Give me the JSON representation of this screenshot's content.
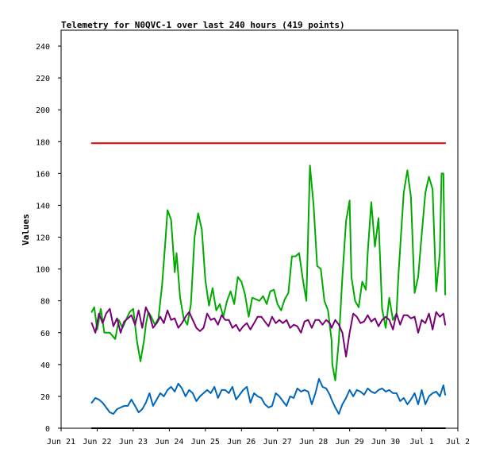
{
  "chart_data": {
    "type": "line",
    "title": "Telemetry for N0QVC-1 over last 240 hours (419 points)",
    "xlabel": "",
    "ylabel": "Values",
    "ylim": [
      0,
      250
    ],
    "yticks": [
      0,
      20,
      40,
      60,
      80,
      100,
      120,
      140,
      160,
      180,
      200,
      220,
      240
    ],
    "xlim": [
      0,
      11
    ],
    "xticks": [
      {
        "x": 0,
        "label": "Jun 21"
      },
      {
        "x": 1,
        "label": "Jun 22"
      },
      {
        "x": 2,
        "label": "Jun 23"
      },
      {
        "x": 3,
        "label": "Jun 24"
      },
      {
        "x": 4,
        "label": "Jun 25"
      },
      {
        "x": 5,
        "label": "Jun 26"
      },
      {
        "x": 6,
        "label": "Jun 27"
      },
      {
        "x": 7,
        "label": "Jun 28"
      },
      {
        "x": 8,
        "label": "Jun 29"
      },
      {
        "x": 9,
        "label": "Jun 30"
      },
      {
        "x": 10,
        "label": "Jul 1"
      },
      {
        "x": 11,
        "label": "Jul 2"
      }
    ],
    "grid": false,
    "legend": "none",
    "series": [
      {
        "color": "#dd0000",
        "x": [
          0.85,
          10.65
        ],
        "y": [
          179,
          179
        ]
      },
      {
        "color": "#000000",
        "x": [
          0.85,
          10.65
        ],
        "y": [
          0,
          0
        ]
      },
      {
        "color": "#00aa00",
        "x": [
          0.85,
          0.92,
          1.0,
          1.1,
          1.2,
          1.35,
          1.5,
          1.6,
          1.7,
          1.8,
          1.9,
          2.0,
          2.1,
          2.2,
          2.3,
          2.35,
          2.42,
          2.5,
          2.6,
          2.7,
          2.8,
          2.9,
          2.95,
          3.05,
          3.15,
          3.2,
          3.3,
          3.4,
          3.5,
          3.6,
          3.7,
          3.8,
          3.9,
          4.0,
          4.1,
          4.2,
          4.3,
          4.4,
          4.5,
          4.6,
          4.7,
          4.8,
          4.9,
          5.0,
          5.1,
          5.2,
          5.3,
          5.4,
          5.5,
          5.6,
          5.7,
          5.8,
          5.9,
          6.0,
          6.1,
          6.2,
          6.3,
          6.4,
          6.5,
          6.6,
          6.7,
          6.8,
          6.9,
          7.0,
          7.1,
          7.2,
          7.3,
          7.4,
          7.5,
          7.52,
          7.6,
          7.7,
          7.8,
          7.9,
          8.0,
          8.05,
          8.15,
          8.25,
          8.35,
          8.45,
          8.5,
          8.6,
          8.7,
          8.8,
          8.9,
          9.0,
          9.1,
          9.2,
          9.3,
          9.35,
          9.45,
          9.5,
          9.6,
          9.7,
          9.8,
          9.9,
          10.0,
          10.1,
          10.2,
          10.3,
          10.4,
          10.5,
          10.55,
          10.6,
          10.65
        ],
        "y": [
          73,
          76,
          62,
          75,
          60,
          60,
          56,
          68,
          63,
          68,
          73,
          75,
          55,
          42,
          55,
          65,
          73,
          70,
          65,
          69,
          90,
          120,
          137,
          131,
          98,
          110,
          82,
          69,
          65,
          78,
          120,
          135,
          125,
          93,
          77,
          88,
          74,
          78,
          70,
          80,
          86,
          78,
          95,
          92,
          84,
          70,
          82,
          81,
          80,
          83,
          78,
          86,
          87,
          78,
          74,
          81,
          85,
          108,
          108,
          110,
          94,
          80,
          165,
          140,
          102,
          100,
          80,
          74,
          55,
          40,
          30,
          55,
          95,
          130,
          143,
          95,
          80,
          76,
          92,
          87,
          110,
          142,
          114,
          132,
          75,
          63,
          82,
          68,
          72,
          95,
          130,
          148,
          162,
          145,
          85,
          95,
          122,
          148,
          158,
          150,
          86,
          110,
          160,
          160,
          84
        ]
      },
      {
        "color": "#770077",
        "x": [
          0.85,
          0.95,
          1.05,
          1.15,
          1.25,
          1.35,
          1.45,
          1.55,
          1.65,
          1.75,
          1.85,
          1.95,
          2.05,
          2.15,
          2.25,
          2.35,
          2.45,
          2.55,
          2.65,
          2.75,
          2.85,
          2.95,
          3.05,
          3.15,
          3.25,
          3.35,
          3.45,
          3.55,
          3.65,
          3.75,
          3.85,
          3.95,
          4.05,
          4.15,
          4.25,
          4.35,
          4.45,
          4.55,
          4.65,
          4.75,
          4.85,
          4.95,
          5.05,
          5.15,
          5.25,
          5.35,
          5.45,
          5.55,
          5.65,
          5.75,
          5.85,
          5.95,
          6.05,
          6.15,
          6.25,
          6.35,
          6.45,
          6.55,
          6.65,
          6.75,
          6.85,
          6.95,
          7.05,
          7.15,
          7.25,
          7.35,
          7.45,
          7.5,
          7.6,
          7.7,
          7.8,
          7.9,
          8.0,
          8.1,
          8.2,
          8.3,
          8.4,
          8.5,
          8.6,
          8.7,
          8.8,
          8.9,
          9.0,
          9.1,
          9.2,
          9.3,
          9.4,
          9.5,
          9.6,
          9.7,
          9.8,
          9.9,
          10.0,
          10.1,
          10.2,
          10.3,
          10.4,
          10.5,
          10.6,
          10.65
        ],
        "y": [
          66,
          60,
          72,
          66,
          72,
          75,
          64,
          69,
          60,
          67,
          69,
          71,
          65,
          74,
          63,
          76,
          71,
          63,
          66,
          70,
          66,
          74,
          68,
          69,
          63,
          66,
          70,
          73,
          68,
          63,
          61,
          63,
          72,
          68,
          69,
          65,
          71,
          68,
          68,
          63,
          65,
          61,
          64,
          66,
          62,
          66,
          70,
          70,
          67,
          64,
          70,
          66,
          68,
          66,
          68,
          63,
          65,
          64,
          60,
          67,
          68,
          63,
          68,
          68,
          65,
          68,
          66,
          63,
          68,
          65,
          60,
          45,
          60,
          72,
          70,
          66,
          67,
          71,
          67,
          69,
          64,
          68,
          70,
          68,
          62,
          72,
          65,
          71,
          71,
          69,
          70,
          60,
          68,
          66,
          72,
          62,
          73,
          70,
          72,
          65
        ]
      },
      {
        "color": "#0066bb",
        "x": [
          0.85,
          0.95,
          1.05,
          1.15,
          1.25,
          1.35,
          1.45,
          1.55,
          1.65,
          1.75,
          1.85,
          1.95,
          2.05,
          2.15,
          2.25,
          2.35,
          2.45,
          2.55,
          2.65,
          2.75,
          2.85,
          2.95,
          3.05,
          3.15,
          3.25,
          3.35,
          3.45,
          3.55,
          3.65,
          3.75,
          3.85,
          3.95,
          4.05,
          4.15,
          4.25,
          4.35,
          4.45,
          4.55,
          4.65,
          4.75,
          4.85,
          4.95,
          5.05,
          5.15,
          5.25,
          5.35,
          5.45,
          5.55,
          5.65,
          5.75,
          5.85,
          5.95,
          6.05,
          6.15,
          6.25,
          6.35,
          6.45,
          6.55,
          6.65,
          6.75,
          6.85,
          6.95,
          7.05,
          7.15,
          7.25,
          7.35,
          7.45,
          7.5,
          7.6,
          7.7,
          7.8,
          7.9,
          8.0,
          8.1,
          8.2,
          8.3,
          8.4,
          8.5,
          8.6,
          8.7,
          8.8,
          8.9,
          9.0,
          9.1,
          9.2,
          9.3,
          9.4,
          9.5,
          9.6,
          9.7,
          9.8,
          9.9,
          10.0,
          10.1,
          10.2,
          10.3,
          10.4,
          10.5,
          10.6,
          10.65
        ],
        "y": [
          16,
          19,
          18,
          16,
          13,
          10,
          9,
          12,
          13,
          14,
          14,
          18,
          14,
          10,
          12,
          16,
          22,
          14,
          18,
          22,
          20,
          24,
          26,
          23,
          28,
          25,
          20,
          24,
          22,
          17,
          20,
          22,
          24,
          22,
          26,
          19,
          24,
          24,
          22,
          26,
          18,
          21,
          24,
          26,
          16,
          22,
          20,
          19,
          15,
          13,
          14,
          22,
          20,
          17,
          14,
          20,
          19,
          25,
          23,
          24,
          23,
          15,
          22,
          31,
          26,
          25,
          21,
          18,
          13,
          9,
          15,
          19,
          24,
          20,
          24,
          23,
          21,
          25,
          23,
          22,
          24,
          25,
          23,
          24,
          22,
          22,
          17,
          19,
          15,
          18,
          22,
          15,
          24,
          15,
          20,
          22,
          23,
          20,
          27,
          21
        ]
      }
    ]
  }
}
